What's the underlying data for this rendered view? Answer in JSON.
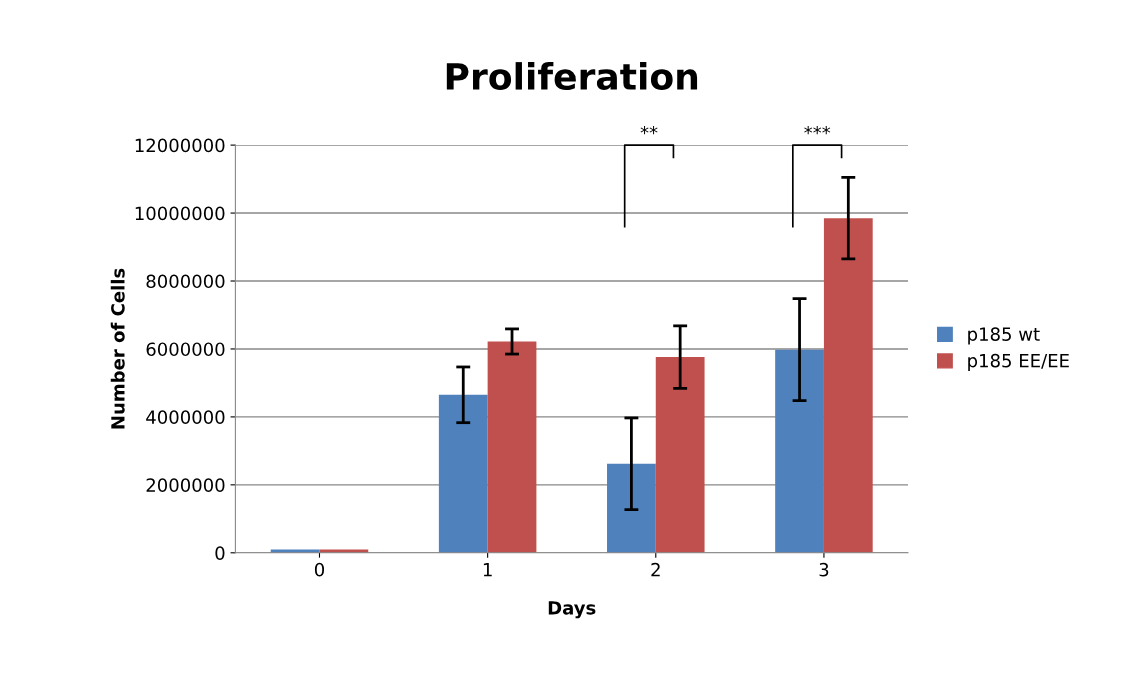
{
  "chart_data": {
    "type": "bar",
    "title": "Proliferation",
    "xlabel": "Days",
    "ylabel": "Number of Cells",
    "categories": [
      "0",
      "1",
      "2",
      "3"
    ],
    "series": [
      {
        "name": "p185 wt",
        "color": "#4f81bd",
        "values": [
          100000,
          4650000,
          2620000,
          5980000
        ],
        "errors": [
          null,
          820000,
          1350000,
          1500000
        ]
      },
      {
        "name": "p185 EE/EE",
        "color": "#c0504d",
        "values": [
          100000,
          6220000,
          5760000,
          9850000
        ],
        "errors": [
          null,
          370000,
          920000,
          1200000
        ]
      }
    ],
    "ylim": [
      0,
      12000000
    ],
    "yticks": [
      0,
      2000000,
      4000000,
      6000000,
      8000000,
      10000000,
      12000000
    ],
    "grid": "y",
    "legend": "right",
    "annotations": [
      "**",
      "***"
    ]
  }
}
